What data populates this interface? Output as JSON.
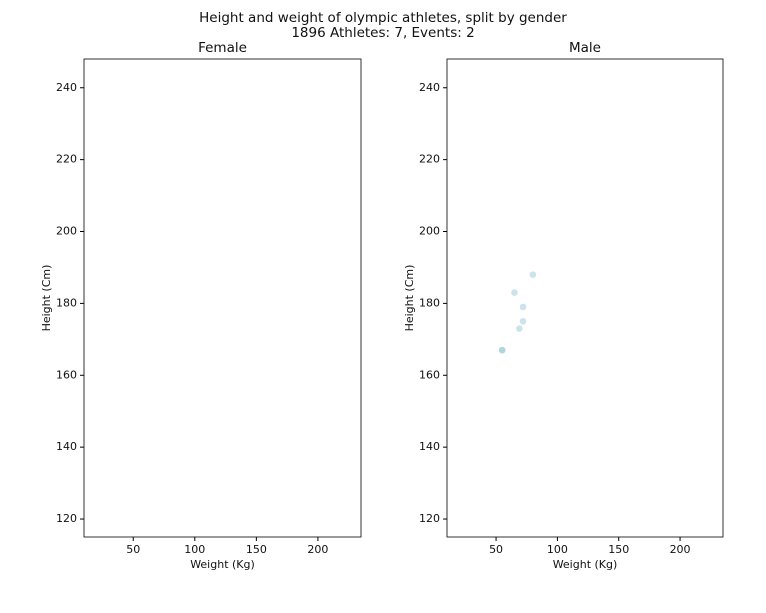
{
  "title": "Height and weight of olympic athletes, split by gender",
  "subtitle": "1896 Athletes: 7, Events: 2",
  "chart_data": [
    {
      "type": "scatter",
      "title": "Female",
      "xlabel": "Weight (Kg)",
      "ylabel": "Height (Cm)",
      "x": [],
      "y": [],
      "color": "#8fc1d3",
      "xlim": [
        10,
        235
      ],
      "ylim": [
        115,
        248
      ],
      "xticks": [
        50,
        100,
        150,
        200
      ],
      "yticks": [
        120,
        140,
        160,
        180,
        200,
        220,
        240
      ]
    },
    {
      "type": "scatter",
      "title": "Male",
      "xlabel": "Weight (Kg)",
      "ylabel": "Height (Cm)",
      "x": [
        55,
        55,
        65,
        72,
        72,
        69,
        80
      ],
      "y": [
        167,
        167,
        183,
        179,
        175,
        173,
        188
      ],
      "color": "#8fc1d3",
      "xlim": [
        10,
        235
      ],
      "ylim": [
        115,
        248
      ],
      "xticks": [
        50,
        100,
        150,
        200
      ],
      "yticks": [
        120,
        140,
        160,
        180,
        200,
        220,
        240
      ]
    }
  ]
}
